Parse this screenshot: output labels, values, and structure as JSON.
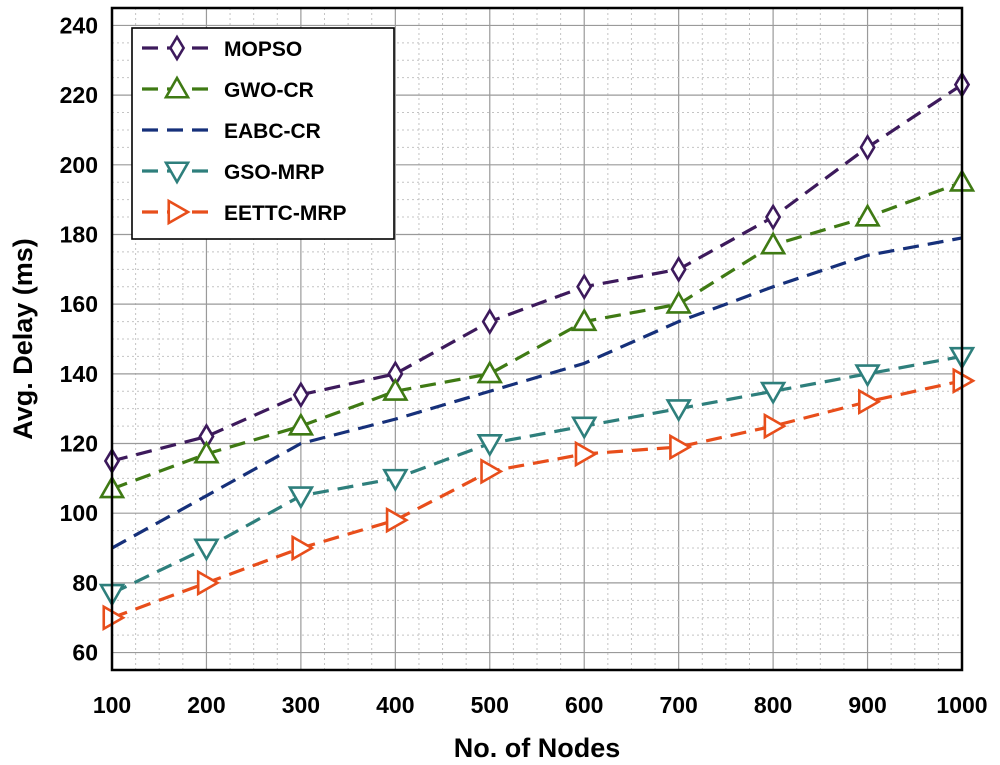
{
  "chart_data": {
    "type": "line",
    "title": "",
    "xlabel": "No. of Nodes",
    "ylabel": "Avg. Delay (ms)",
    "x": [
      100,
      200,
      300,
      400,
      500,
      600,
      700,
      800,
      900,
      1000
    ],
    "xlim": [
      100,
      1000
    ],
    "ylim": [
      55,
      245
    ],
    "xticks": [
      100,
      200,
      300,
      400,
      500,
      600,
      700,
      800,
      900,
      1000
    ],
    "yticks": [
      60,
      80,
      100,
      120,
      140,
      160,
      180,
      200,
      220,
      240
    ],
    "grid": true,
    "legend_position": "top-left",
    "series": [
      {
        "name": "MOPSO",
        "color": "#3d1a5c",
        "marker": "diamond",
        "values": [
          115,
          122,
          134,
          140,
          155,
          165,
          170,
          185,
          205,
          223
        ]
      },
      {
        "name": "GWO-CR",
        "color": "#3f7a14",
        "marker": "triangle-up",
        "values": [
          107,
          117,
          125,
          135,
          140,
          155,
          160,
          177,
          185,
          195
        ]
      },
      {
        "name": "EABC-CR",
        "color": "#16307a",
        "marker": "none",
        "values": [
          90,
          105,
          120,
          127,
          135,
          143,
          155,
          165,
          174,
          179
        ]
      },
      {
        "name": "GSO-MRP",
        "color": "#2e7f7c",
        "marker": "triangle-down",
        "values": [
          77,
          90,
          105,
          110,
          120,
          125,
          130,
          135,
          140,
          145
        ]
      },
      {
        "name": "EETTC-MRP",
        "color": "#e84e1b",
        "marker": "triangle-right",
        "values": [
          70,
          80,
          90,
          98,
          112,
          117,
          119,
          125,
          132,
          138
        ]
      }
    ]
  }
}
